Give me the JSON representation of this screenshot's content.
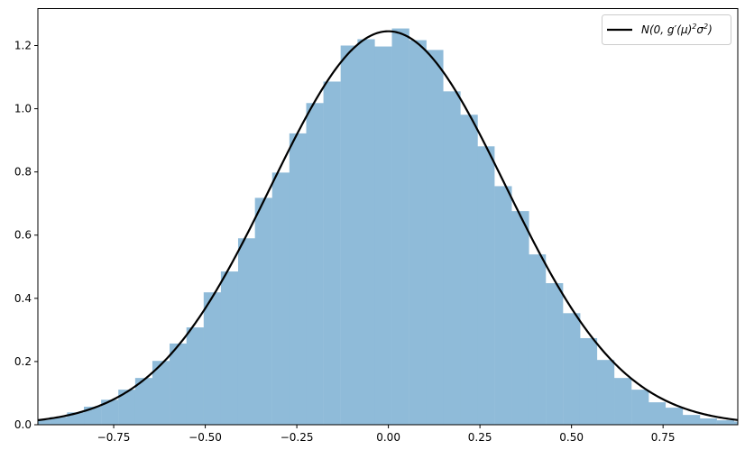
{
  "chart_data": {
    "type": "bar",
    "subtype": "histogram-with-density-curve",
    "title": "",
    "xlabel": "",
    "ylabel": "",
    "xlim": [
      -0.957,
      0.954
    ],
    "ylim": [
      0,
      1.317
    ],
    "grid": false,
    "legend_placement": "top-right",
    "x_ticks": [
      "−0.75",
      "−0.50",
      "−0.25",
      "0.00",
      "0.25",
      "0.50",
      "0.75"
    ],
    "x_tick_values": [
      -0.75,
      -0.5,
      -0.25,
      0,
      0.25,
      0.5,
      0.75
    ],
    "y_ticks": [
      "0.0",
      "0.2",
      "0.4",
      "0.6",
      "0.8",
      "1.0",
      "1.2"
    ],
    "y_tick_values": [
      0,
      0.2,
      0.4,
      0.6,
      0.8,
      1.0,
      1.2
    ],
    "histogram": {
      "bin_width": 0.0467,
      "bin_centers": [
        -0.948,
        -0.901,
        -0.854,
        -0.808,
        -0.761,
        -0.714,
        -0.668,
        -0.621,
        -0.574,
        -0.528,
        -0.481,
        -0.434,
        -0.387,
        -0.341,
        -0.294,
        -0.247,
        -0.201,
        -0.154,
        -0.107,
        -0.061,
        -0.014,
        0.033,
        0.08,
        0.126,
        0.173,
        0.22,
        0.266,
        0.313,
        0.36,
        0.406,
        0.453,
        0.5,
        0.546,
        0.593,
        0.64,
        0.687,
        0.733,
        0.78,
        0.827,
        0.873,
        0.92,
        0.967
      ],
      "values": [
        0.015,
        0.024,
        0.039,
        0.057,
        0.079,
        0.111,
        0.148,
        0.202,
        0.257,
        0.308,
        0.419,
        0.485,
        0.59,
        0.718,
        0.798,
        0.922,
        1.018,
        1.086,
        1.2,
        1.22,
        1.197,
        1.254,
        1.217,
        1.186,
        1.055,
        0.981,
        0.881,
        0.755,
        0.676,
        0.539,
        0.448,
        0.353,
        0.274,
        0.205,
        0.148,
        0.111,
        0.071,
        0.054,
        0.031,
        0.02,
        0.014,
        0.01
      ],
      "color": "#8fbbd9"
    },
    "series": [
      {
        "name": "N(0, g′(μ)²σ²)",
        "type": "line",
        "mean": 0,
        "std": 0.3204,
        "color": "#000000"
      }
    ],
    "legend": {
      "label_main": "N(0, g′(μ)",
      "label_sup1": "2",
      "label_mid": "σ",
      "label_sup2": "2",
      "label_end": ")"
    }
  }
}
